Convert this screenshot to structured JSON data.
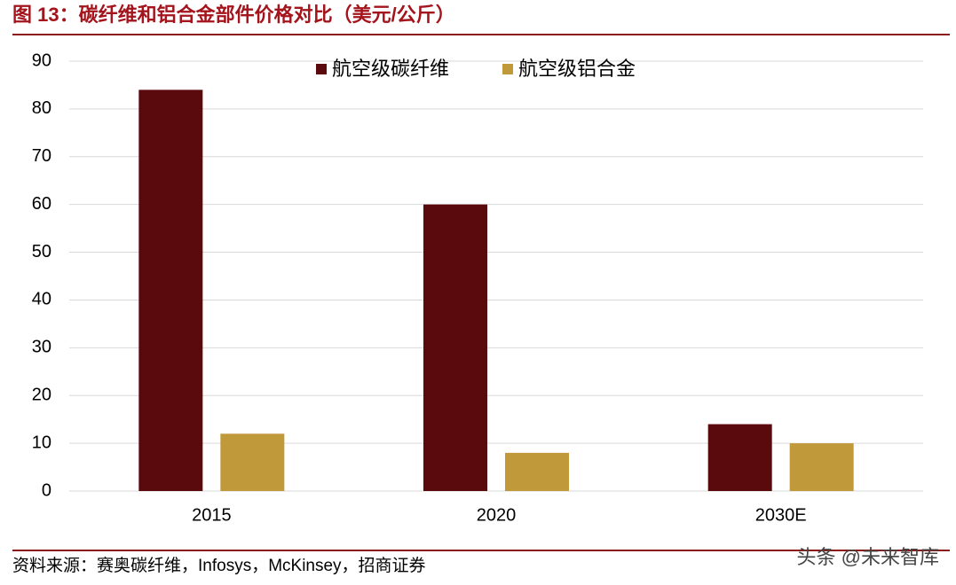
{
  "chart_data": {
    "type": "bar",
    "title": "图 13：碳纤维和铝合金部件价格对比（美元/公斤）",
    "categories": [
      "2015",
      "2020",
      "2030E"
    ],
    "series": [
      {
        "name": "航空级碳纤维",
        "color": "#5a0a0c",
        "values": [
          84,
          60,
          14
        ]
      },
      {
        "name": "航空级铝合金",
        "color": "#c09a3a",
        "values": [
          12,
          8,
          10
        ]
      }
    ],
    "ylim": [
      0,
      90
    ],
    "yticks": [
      0,
      10,
      20,
      30,
      40,
      50,
      60,
      70,
      80,
      90
    ],
    "grid": true,
    "legend": "top",
    "source": "资料来源：赛奥碳纤维，Infosys，McKinsey，招商证券",
    "watermark": "头条 @未来智库"
  }
}
